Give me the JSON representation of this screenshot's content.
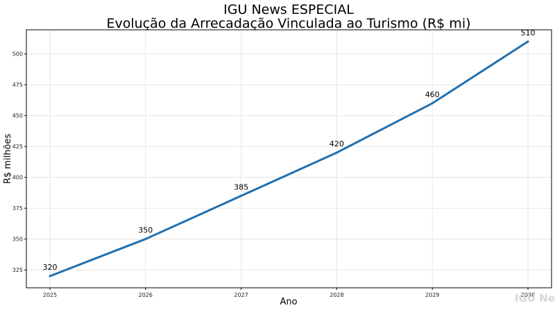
{
  "chart_data": {
    "type": "line",
    "title": "IGU News ESPECIAL",
    "subtitle": "Evolução da Arrecadação Vinculada ao Turismo (R$ mi)",
    "xlabel": "Ano",
    "ylabel": "R$ milhões",
    "x": [
      "2025",
      "2026",
      "2027",
      "2028",
      "2029",
      "2030"
    ],
    "series": [
      {
        "values": [
          320,
          350,
          385,
          420,
          460,
          510
        ],
        "color": "#1f6fb0"
      }
    ],
    "yticks": [
      325,
      350,
      375,
      400,
      425,
      450,
      475,
      500
    ],
    "ylim": [
      310.5,
      519.5
    ],
    "grid": true
  },
  "watermark": "IGU Ne"
}
